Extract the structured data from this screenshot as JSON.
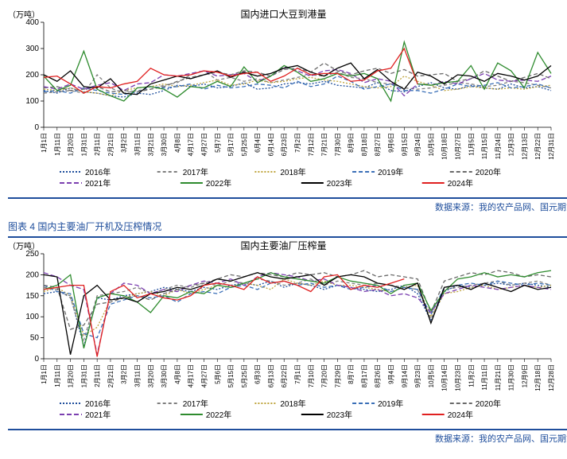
{
  "chart1": {
    "type": "line",
    "title": "国内进口大豆到港量",
    "y_unit": "（万吨）",
    "ylim": [
      0,
      400
    ],
    "ytick_step": 100,
    "title_fontsize": 12,
    "label_fontsize": 10,
    "xtick_fontsize": 8,
    "background_color": "#ffffff",
    "line_width": 1.3,
    "x_labels": [
      "1月1日",
      "1月11日",
      "1月20日",
      "1月31日",
      "2月11日",
      "2月21日",
      "3月2日",
      "3月11日",
      "3月21日",
      "3月30日",
      "4月8日",
      "4月17日",
      "4月27日",
      "5月7日",
      "5月17日",
      "5月25日",
      "6月4日",
      "6月14日",
      "6月23日",
      "7月2日",
      "7月12日",
      "7月21日",
      "7月30日",
      "8月9日",
      "8月18日",
      "8月27日",
      "9月6日",
      "9月15日",
      "9月24日",
      "10月5日",
      "10月18日",
      "10月27日",
      "11月5日",
      "11月15日",
      "11月24日",
      "12月3日",
      "12月13日",
      "12月22日",
      "12月31日"
    ],
    "series": [
      {
        "name": "2016年",
        "color": "#1f4e9c",
        "dash": "2 2",
        "values": [
          140,
          130,
          150,
          135,
          130,
          120,
          115,
          130,
          125,
          140,
          160,
          155,
          165,
          150,
          155,
          170,
          145,
          150,
          165,
          170,
          165,
          175,
          160,
          155,
          150,
          170,
          140,
          135,
          155,
          170,
          150,
          145,
          160,
          150,
          145,
          165,
          150,
          155,
          140
        ]
      },
      {
        "name": "2017年",
        "color": "#7f7f7f",
        "dash": "4 3",
        "values": [
          130,
          135,
          140,
          130,
          200,
          150,
          130,
          140,
          145,
          160,
          170,
          200,
          215,
          180,
          190,
          175,
          185,
          170,
          180,
          190,
          200,
          195,
          210,
          190,
          185,
          170,
          165,
          150,
          145,
          150,
          160,
          170,
          165,
          155,
          160,
          175,
          170,
          160,
          150
        ]
      },
      {
        "name": "2018年",
        "color": "#bfa53f",
        "dash": "2 2",
        "values": [
          145,
          140,
          150,
          135,
          130,
          120,
          140,
          150,
          155,
          165,
          155,
          160,
          170,
          180,
          160,
          165,
          180,
          170,
          175,
          185,
          190,
          180,
          175,
          165,
          155,
          150,
          155,
          195,
          175,
          160,
          140,
          145,
          155,
          150,
          145,
          150,
          145,
          155,
          160
        ]
      },
      {
        "name": "2019年",
        "color": "#3a6fb7",
        "dash": "5 3",
        "values": [
          135,
          140,
          130,
          150,
          140,
          130,
          125,
          135,
          155,
          150,
          155,
          165,
          145,
          160,
          150,
          155,
          165,
          160,
          150,
          175,
          155,
          165,
          195,
          175,
          145,
          155,
          165,
          140,
          140,
          130,
          145,
          165,
          155,
          160,
          170,
          150,
          155,
          165,
          150
        ]
      },
      {
        "name": "2020年",
        "color": "#6a6a6a",
        "dash": "5 3",
        "values": [
          150,
          155,
          140,
          145,
          155,
          135,
          140,
          135,
          145,
          155,
          175,
          190,
          200,
          210,
          200,
          215,
          210,
          195,
          220,
          225,
          210,
          245,
          215,
          200,
          215,
          225,
          205,
          220,
          195,
          200,
          205,
          175,
          185,
          215,
          195,
          175,
          190,
          205,
          185
        ]
      },
      {
        "name": "2021年",
        "color": "#7b3fb0",
        "dash": "6 3",
        "values": [
          155,
          145,
          165,
          145,
          160,
          170,
          140,
          165,
          170,
          200,
          195,
          205,
          215,
          195,
          200,
          205,
          175,
          195,
          230,
          215,
          195,
          215,
          220,
          205,
          170,
          185,
          175,
          120,
          165,
          160,
          175,
          165,
          185,
          205,
          180,
          175,
          180,
          175,
          195
        ]
      },
      {
        "name": "2022年",
        "color": "#2e8b2e",
        "dash": "",
        "values": [
          195,
          140,
          160,
          290,
          145,
          120,
          100,
          150,
          155,
          145,
          115,
          155,
          150,
          175,
          155,
          230,
          170,
          195,
          235,
          210,
          175,
          185,
          205,
          195,
          205,
          185,
          100,
          325,
          165,
          160,
          170,
          175,
          235,
          145,
          245,
          215,
          150,
          285,
          205
        ]
      },
      {
        "name": "2023年",
        "color": "#000000",
        "dash": "",
        "values": [
          200,
          175,
          215,
          155,
          150,
          185,
          130,
          125,
          165,
          180,
          195,
          185,
          200,
          215,
          190,
          210,
          195,
          205,
          225,
          235,
          210,
          195,
          225,
          245,
          185,
          220,
          175,
          145,
          210,
          195,
          165,
          200,
          195,
          175,
          205,
          195,
          180,
          195,
          235
        ]
      },
      {
        "name": "2024年",
        "color": "#e02020",
        "dash": "",
        "values": [
          190,
          195,
          165,
          130,
          155,
          150,
          165,
          175,
          225,
          200,
          195,
          200,
          215,
          210,
          195,
          205,
          210,
          175,
          195,
          225,
          200,
          205,
          205,
          175,
          180,
          215,
          225,
          300,
          165,
          null,
          null,
          null,
          null,
          null,
          null,
          null,
          null,
          null,
          null
        ]
      }
    ],
    "legend_layout": [
      [
        "2016年",
        "2017年",
        "2018年",
        "2019年",
        "2020年"
      ],
      [
        "2021年",
        "2022年",
        "2023年",
        "2024年"
      ]
    ],
    "source": "数据来源：我的农产品网、国元期货"
  },
  "fig4_title": "图表 4  国内主要油厂开机及压榨情况",
  "chart2": {
    "type": "line",
    "title": "国内主要油厂压榨量",
    "y_unit": "（万吨）",
    "ylim": [
      0,
      250
    ],
    "ytick_step": 50,
    "title_fontsize": 12,
    "label_fontsize": 10,
    "xtick_fontsize": 8,
    "background_color": "#ffffff",
    "line_width": 1.3,
    "x_labels": [
      "1月1日",
      "1月11日",
      "1月20日",
      "1月31日",
      "2月11日",
      "2月21日",
      "3月2日",
      "3月11日",
      "3月20日",
      "3月30日",
      "4月8日",
      "4月17日",
      "4月27日",
      "5月6日",
      "5月15日",
      "5月25日",
      "6月3日",
      "6月13日",
      "6月22日",
      "7月1日",
      "7月10日",
      "7月20日",
      "7月29日",
      "8月7日",
      "8月17日",
      "8月26日",
      "9月4日",
      "9月14日",
      "9月23日",
      "10月5日",
      "10月14日",
      "10月23日",
      "11月2日",
      "11月11日",
      "11月21日",
      "11月30日",
      "12月9日",
      "12月18日",
      "12月28日"
    ],
    "series": [
      {
        "name": "2016年",
        "color": "#1f4e9c",
        "dash": "2 2",
        "values": [
          155,
          160,
          150,
          30,
          145,
          140,
          150,
          155,
          160,
          170,
          165,
          160,
          170,
          165,
          175,
          180,
          175,
          185,
          170,
          180,
          175,
          165,
          175,
          170,
          165,
          160,
          165,
          175,
          155,
          90,
          160,
          175,
          170,
          175,
          180,
          175,
          180,
          175,
          170
        ]
      },
      {
        "name": "2017年",
        "color": "#7f7f7f",
        "dash": "4 3",
        "values": [
          170,
          165,
          145,
          45,
          150,
          155,
          160,
          170,
          155,
          165,
          175,
          170,
          180,
          175,
          185,
          180,
          190,
          185,
          175,
          180,
          190,
          175,
          185,
          180,
          175,
          180,
          175,
          170,
          165,
          95,
          165,
          170,
          175,
          180,
          185,
          175,
          180,
          185,
          175
        ]
      },
      {
        "name": "2018年",
        "color": "#bfa53f",
        "dash": "2 2",
        "values": [
          160,
          170,
          150,
          55,
          75,
          140,
          145,
          155,
          160,
          150,
          165,
          155,
          165,
          175,
          170,
          180,
          175,
          165,
          190,
          180,
          175,
          185,
          175,
          175,
          170,
          165,
          160,
          170,
          175,
          100,
          155,
          160,
          170,
          175,
          165,
          170,
          175,
          170,
          175
        ]
      },
      {
        "name": "2019年",
        "color": "#3a6fb7",
        "dash": "5 3",
        "values": [
          175,
          160,
          155,
          60,
          50,
          130,
          140,
          150,
          145,
          150,
          135,
          155,
          160,
          155,
          170,
          175,
          165,
          180,
          185,
          175,
          180,
          170,
          175,
          165,
          170,
          175,
          160,
          170,
          165,
          105,
          170,
          175,
          180,
          175,
          185,
          180,
          175,
          180,
          175
        ]
      },
      {
        "name": "2020年",
        "color": "#6a6a6a",
        "dash": "5 3",
        "values": [
          175,
          170,
          70,
          80,
          130,
          135,
          145,
          150,
          140,
          155,
          165,
          175,
          180,
          190,
          200,
          195,
          205,
          200,
          195,
          205,
          200,
          205,
          195,
          200,
          210,
          195,
          200,
          195,
          190,
          110,
          185,
          195,
          205,
          200,
          210,
          205,
          195,
          200,
          195
        ]
      },
      {
        "name": "2021年",
        "color": "#7b3fb0",
        "dash": "6 3",
        "values": [
          205,
          195,
          175,
          165,
          10,
          155,
          180,
          175,
          155,
          165,
          160,
          175,
          185,
          180,
          190,
          175,
          195,
          205,
          200,
          195,
          185,
          190,
          175,
          170,
          160,
          165,
          150,
          155,
          145,
          110,
          155,
          165,
          175,
          170,
          165,
          170,
          175,
          170,
          165
        ]
      },
      {
        "name": "2022年",
        "color": "#2e8b2e",
        "dash": "",
        "values": [
          165,
          175,
          200,
          25,
          145,
          155,
          150,
          135,
          110,
          150,
          145,
          160,
          155,
          175,
          170,
          180,
          190,
          205,
          195,
          190,
          185,
          180,
          195,
          185,
          180,
          175,
          155,
          175,
          180,
          115,
          160,
          190,
          195,
          205,
          195,
          200,
          195,
          205,
          210
        ]
      },
      {
        "name": "2023年",
        "color": "#000000",
        "dash": "",
        "values": [
          200,
          195,
          10,
          150,
          175,
          140,
          145,
          135,
          155,
          160,
          170,
          165,
          175,
          190,
          185,
          195,
          205,
          195,
          190,
          195,
          200,
          175,
          195,
          200,
          195,
          180,
          175,
          165,
          180,
          85,
          170,
          175,
          165,
          180,
          170,
          160,
          175,
          165,
          170
        ]
      },
      {
        "name": "2024年",
        "color": "#e02020",
        "dash": "",
        "values": [
          165,
          170,
          175,
          175,
          5,
          160,
          175,
          145,
          155,
          145,
          140,
          150,
          175,
          180,
          175,
          165,
          195,
          180,
          185,
          175,
          160,
          195,
          200,
          165,
          175,
          170,
          180,
          190,
          null,
          null,
          null,
          null,
          null,
          null,
          null,
          null,
          null,
          null,
          null
        ]
      }
    ],
    "legend_layout": [
      [
        "2016年",
        "2017年",
        "2018年",
        "2019年",
        "2020年"
      ],
      [
        "2021年",
        "2022年",
        "2023年",
        "2024年"
      ]
    ],
    "source": "数据来源：我的农产品网、国元期货"
  }
}
